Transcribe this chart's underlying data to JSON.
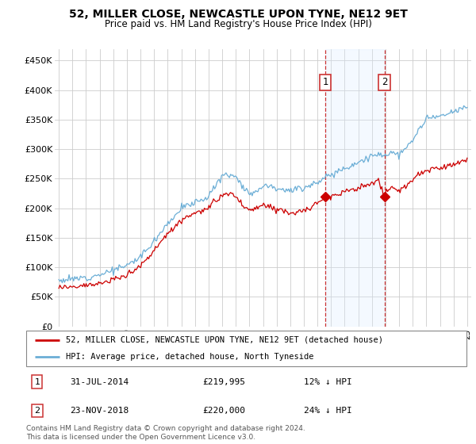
{
  "title": "52, MILLER CLOSE, NEWCASTLE UPON TYNE, NE12 9ET",
  "subtitle": "Price paid vs. HM Land Registry's House Price Index (HPI)",
  "legend_line1": "52, MILLER CLOSE, NEWCASTLE UPON TYNE, NE12 9ET (detached house)",
  "legend_line2": "HPI: Average price, detached house, North Tyneside",
  "sale1_date": "31-JUL-2014",
  "sale1_price": 219995,
  "sale1_pct": "12% ↓ HPI",
  "sale2_date": "23-NOV-2018",
  "sale2_price": 220000,
  "sale2_pct": "24% ↓ HPI",
  "footer": "Contains HM Land Registry data © Crown copyright and database right 2024.\nThis data is licensed under the Open Government Licence v3.0.",
  "hpi_color": "#6baed6",
  "price_color": "#cc0000",
  "vline_color": "#cc3333",
  "shade_color": "#ddeeff",
  "ylim": [
    0,
    470000
  ],
  "yticks": [
    0,
    50000,
    100000,
    150000,
    200000,
    250000,
    300000,
    350000,
    400000,
    450000
  ],
  "sale1_x": 2014.58,
  "sale2_x": 2018.92,
  "shade_x1": 2014.58,
  "shade_x2": 2018.92,
  "xmin": 1994.7,
  "xmax": 2025.3
}
